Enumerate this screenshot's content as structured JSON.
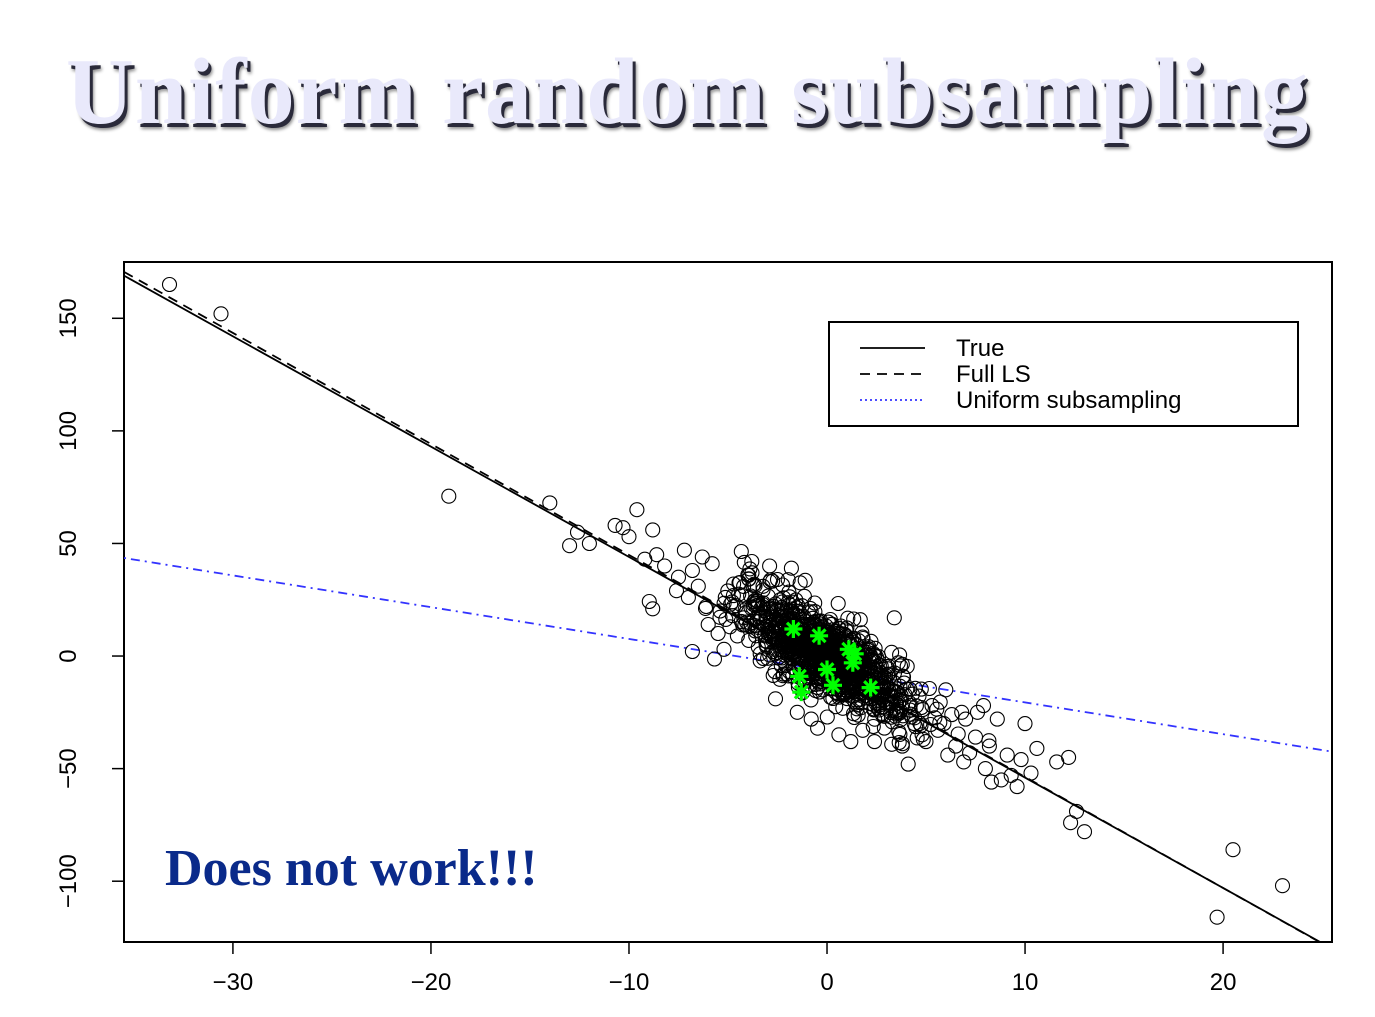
{
  "slide": {
    "title": "Uniform random subsampling"
  },
  "chart_data": {
    "type": "scatter",
    "title": "",
    "xlabel": "",
    "ylabel": "",
    "xlim": [
      -35.5,
      25.5
    ],
    "ylim": [
      -127,
      175
    ],
    "xticks": [
      -30,
      -20,
      -10,
      0,
      10,
      20
    ],
    "yticks": [
      -100,
      -50,
      0,
      50,
      100,
      150
    ],
    "grid": false,
    "legend_position": "top-right",
    "series": [
      {
        "name": "",
        "marker": "circle",
        "color": "#000000",
        "note_points": "outlying points read off the chart; the dense central cloud is generated procedurally",
        "points": [
          [
            -33.2,
            165
          ],
          [
            -30.6,
            152
          ],
          [
            -19.1,
            71
          ],
          [
            -14.0,
            68
          ],
          [
            -12.6,
            55
          ],
          [
            -12.0,
            50
          ],
          [
            -13.0,
            49
          ],
          [
            -10.7,
            58
          ],
          [
            -10.3,
            57
          ],
          [
            -10.0,
            53
          ],
          [
            -9.6,
            65
          ],
          [
            -8.8,
            56
          ],
          [
            -8.6,
            45
          ],
          [
            -9.2,
            43
          ],
          [
            -8.2,
            40
          ],
          [
            -7.5,
            35
          ],
          [
            -7.6,
            29
          ],
          [
            -7.2,
            47
          ],
          [
            -6.8,
            38
          ],
          [
            -6.5,
            31
          ],
          [
            -6.3,
            44
          ],
          [
            -5.8,
            41
          ],
          [
            -6.1,
            22
          ],
          [
            -6.0,
            14
          ],
          [
            -5.4,
            20
          ],
          [
            -7.0,
            26
          ],
          [
            -5.5,
            10
          ],
          [
            -4.9,
            13
          ],
          [
            -8.8,
            21
          ],
          [
            -4.3,
            27
          ],
          [
            -6.8,
            2
          ],
          [
            -5.2,
            3
          ],
          [
            -4.0,
            36
          ],
          [
            -4.2,
            17
          ],
          [
            -3.6,
            9
          ],
          [
            -3.0,
            -1
          ],
          [
            -2.9,
            40
          ],
          [
            -3.8,
            42
          ],
          [
            -2.5,
            34
          ],
          [
            -1.8,
            39
          ],
          [
            -1.3,
            14
          ],
          [
            -2.2,
            -8
          ],
          [
            -2.6,
            -19
          ],
          [
            -1.5,
            -25
          ],
          [
            -0.8,
            -28
          ],
          [
            0.6,
            -35
          ],
          [
            1.8,
            -33
          ],
          [
            1.2,
            -38
          ],
          [
            2.9,
            -32
          ],
          [
            3.4,
            17
          ],
          [
            3.6,
            -3
          ],
          [
            3.9,
            -12
          ],
          [
            4.2,
            -24
          ],
          [
            4.4,
            -30
          ],
          [
            4.8,
            -35
          ],
          [
            5.0,
            -38
          ],
          [
            5.3,
            -22
          ],
          [
            5.6,
            -33
          ],
          [
            6.0,
            -15
          ],
          [
            6.1,
            -44
          ],
          [
            6.3,
            -26
          ],
          [
            6.5,
            -40
          ],
          [
            6.8,
            -25
          ],
          [
            7.0,
            -28
          ],
          [
            7.2,
            -43
          ],
          [
            7.5,
            -36
          ],
          [
            7.6,
            -25
          ],
          [
            7.9,
            -22
          ],
          [
            8.2,
            -40
          ],
          [
            8.6,
            -28
          ],
          [
            9.1,
            -44
          ],
          [
            9.3,
            -53
          ],
          [
            9.6,
            -58
          ],
          [
            8.3,
            -56
          ],
          [
            8.8,
            -55
          ],
          [
            9.8,
            -46
          ],
          [
            10.3,
            -52
          ],
          [
            10.0,
            -30
          ],
          [
            10.6,
            -41
          ],
          [
            11.6,
            -47
          ],
          [
            12.2,
            -45
          ],
          [
            12.3,
            -74
          ],
          [
            12.6,
            -69
          ],
          [
            13.0,
            -78
          ],
          [
            4.1,
            -48
          ],
          [
            6.9,
            -47
          ],
          [
            3.8,
            -40
          ],
          [
            2.4,
            -38
          ],
          [
            5.9,
            -30
          ],
          [
            8.0,
            -50
          ],
          [
            20.5,
            -86
          ],
          [
            19.7,
            -116
          ],
          [
            23.0,
            -102
          ]
        ],
        "cloud": {
          "n": 1100,
          "center": [
            0.0,
            0.0
          ],
          "sd_x": 2.1,
          "slope": -5.0,
          "sd_resid": 8.5
        }
      },
      {
        "name": "",
        "marker": "star",
        "color": "#00ff00",
        "points": [
          [
            -1.7,
            12
          ],
          [
            -0.4,
            9
          ],
          [
            1.1,
            3
          ],
          [
            1.4,
            1
          ],
          [
            1.3,
            -3
          ],
          [
            0.0,
            -6
          ],
          [
            -1.4,
            -9
          ],
          [
            0.3,
            -13
          ],
          [
            2.2,
            -14
          ],
          [
            -1.3,
            -16
          ]
        ]
      },
      {
        "name": "True",
        "type": "line",
        "style": "solid",
        "color": "#000000",
        "intercept": -5.0,
        "slope": -4.9
      },
      {
        "name": "Full LS",
        "type": "line",
        "style": "dashed",
        "color": "#000000",
        "intercept": -4.4,
        "slope": -4.93
      },
      {
        "name": "Uniform subsampling",
        "type": "line",
        "style": "dotdash",
        "color": "#3333ff",
        "intercept": -6.5,
        "slope": -1.41
      }
    ],
    "annotation": {
      "text": "Does not work!!!",
      "color": "#0a2a8a"
    }
  }
}
